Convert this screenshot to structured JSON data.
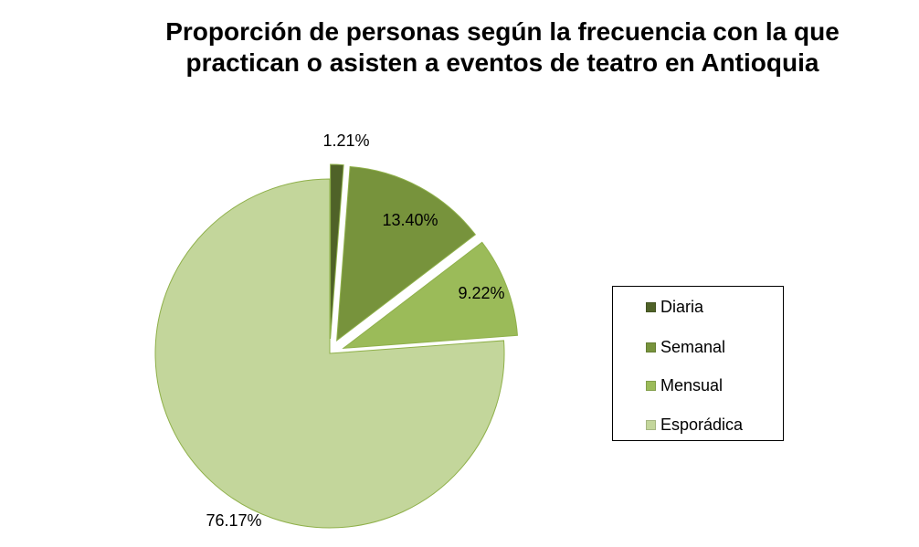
{
  "chart_data": {
    "type": "pie",
    "title": [
      "Proporción de personas según la frecuencia con la que",
      "practican o asisten a eventos de teatro en Antioquia"
    ],
    "categories": [
      "Diaria",
      "Semanal",
      "Mensual",
      "Esporádica"
    ],
    "values": [
      1.21,
      13.4,
      9.22,
      76.17
    ],
    "labels": [
      "1.21%",
      "13.40%",
      "9.22%",
      "76.17%"
    ],
    "colors": [
      "#4f6228",
      "#77933c",
      "#9bbb59",
      "#c3d69b"
    ],
    "exploded": [
      true,
      true,
      true,
      false
    ],
    "legend_position": "right"
  }
}
